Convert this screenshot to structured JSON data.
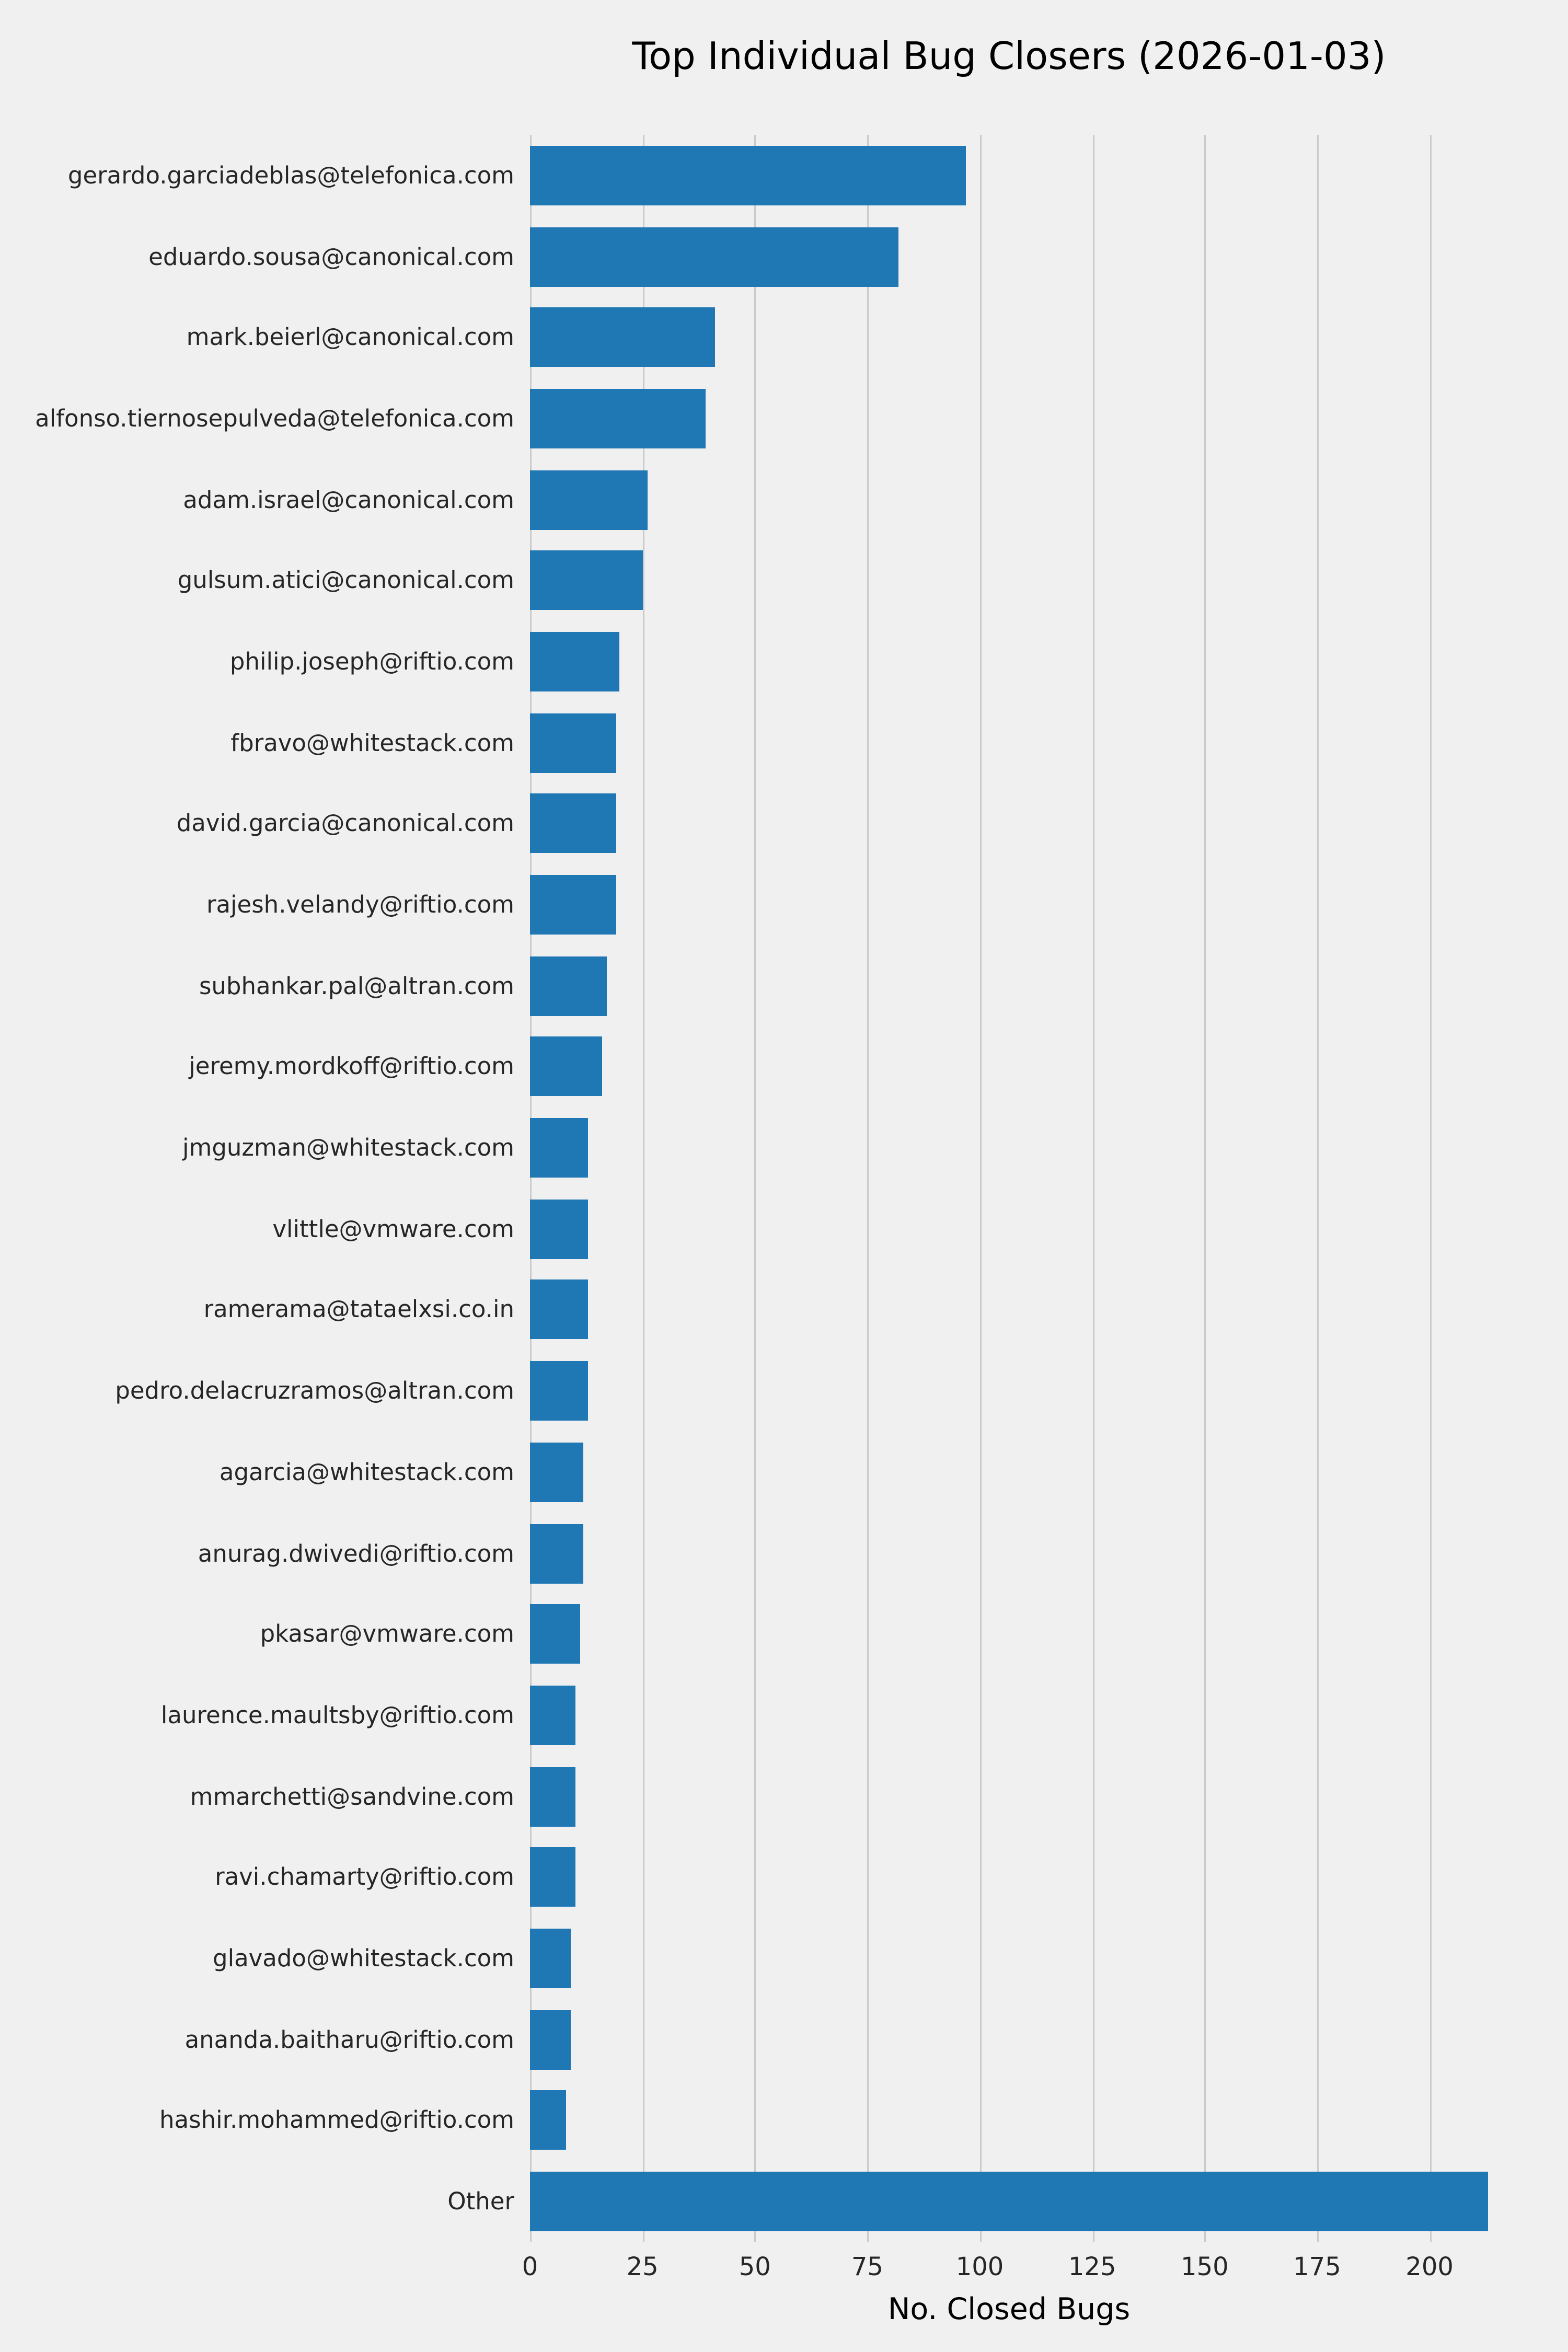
{
  "chart_data": {
    "type": "bar",
    "orientation": "horizontal",
    "title": "Top Individual Bug Closers (2026-01-03)",
    "xlabel": "No. Closed Bugs",
    "ylabel": "",
    "xlim": [
      0,
      213
    ],
    "xticks": [
      0,
      25,
      50,
      75,
      100,
      125,
      150,
      175,
      200
    ],
    "grid": true,
    "legend": false,
    "bar_color": "#1f77b4",
    "background_color": "#f0f0f0",
    "grid_color": "#cbcbcb",
    "categories": [
      "gerardo.garciadeblas@telefonica.com",
      "eduardo.sousa@canonical.com",
      "mark.beierl@canonical.com",
      "alfonso.tiernosepulveda@telefonica.com",
      "adam.israel@canonical.com",
      "gulsum.atici@canonical.com",
      "philip.joseph@riftio.com",
      "fbravo@whitestack.com",
      "david.garcia@canonical.com",
      "rajesh.velandy@riftio.com",
      "subhankar.pal@altran.com",
      "jeremy.mordkoff@riftio.com",
      "jmguzman@whitestack.com",
      "vlittle@vmware.com",
      "ramerama@tataelxsi.co.in",
      "pedro.delacruzramos@altran.com",
      "agarcia@whitestack.com",
      "anurag.dwivedi@riftio.com",
      "pkasar@vmware.com",
      "laurence.maultsby@riftio.com",
      "mmarchetti@sandvine.com",
      "ravi.chamarty@riftio.com",
      "glavado@whitestack.com",
      "ananda.baitharu@riftio.com",
      "hashir.mohammed@riftio.com",
      "Other"
    ],
    "values": [
      97,
      82,
      41,
      39,
      26,
      25,
      20,
      19,
      19,
      19,
      17,
      16,
      13,
      13,
      13,
      13,
      12,
      12,
      11,
      10,
      10,
      10,
      9,
      9,
      8,
      213
    ]
  }
}
